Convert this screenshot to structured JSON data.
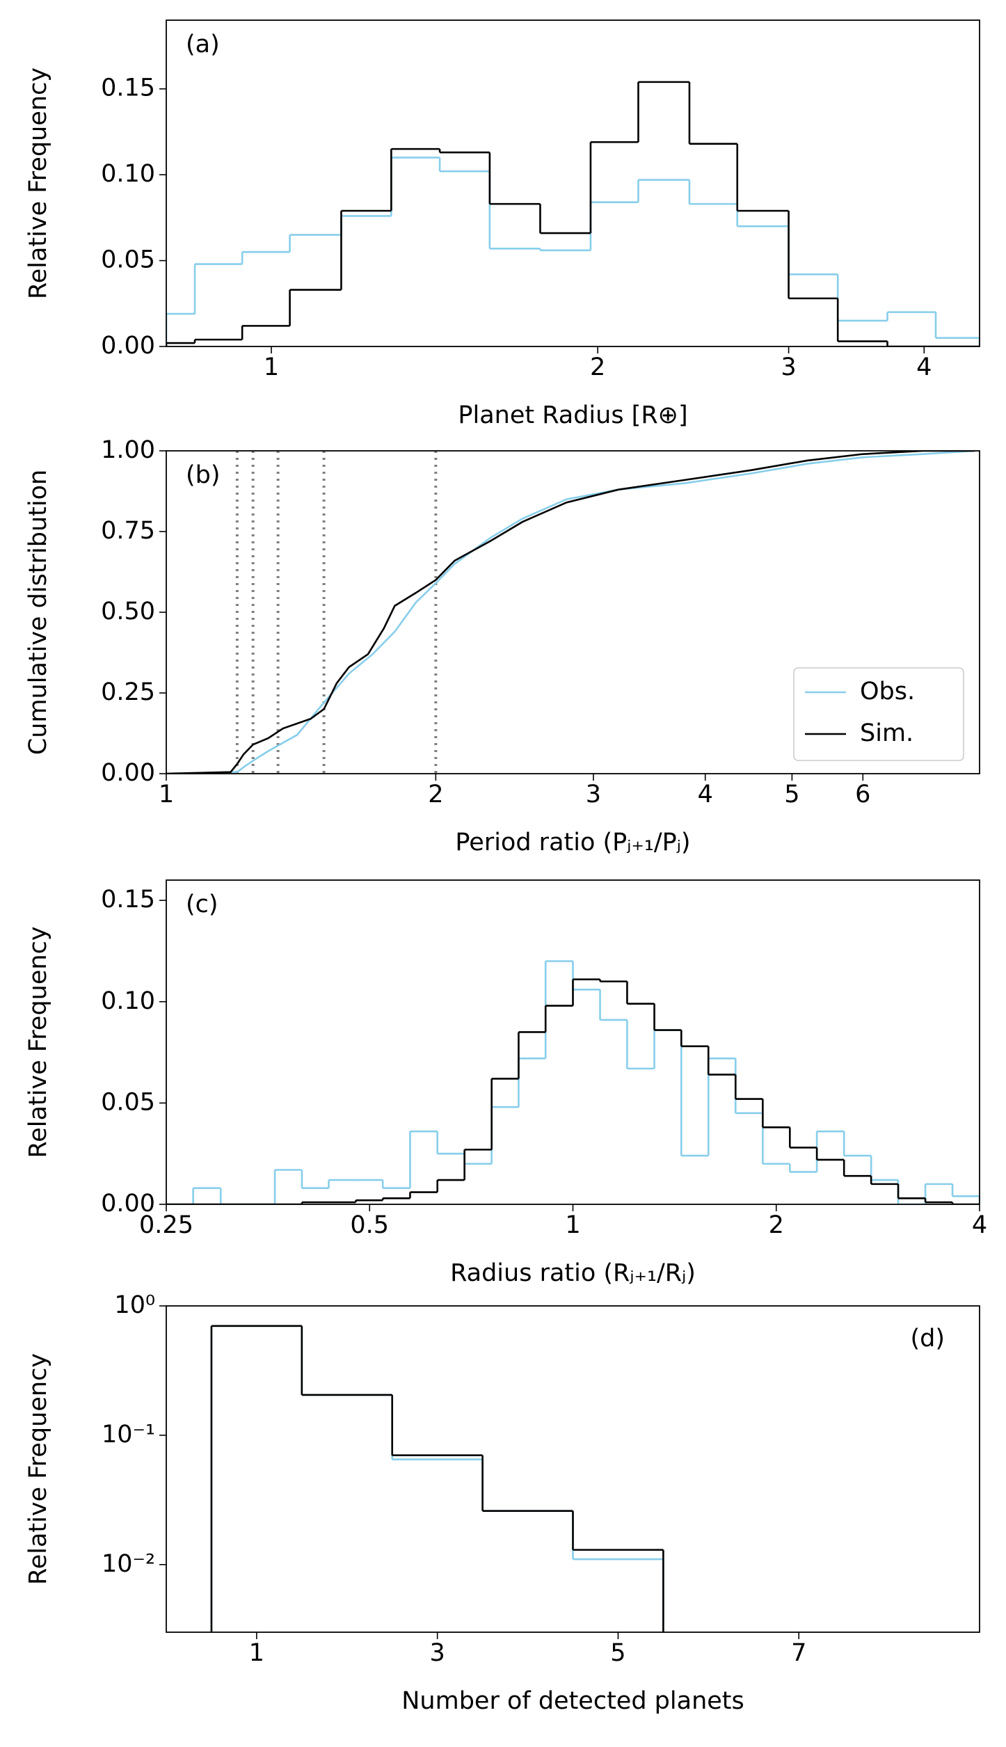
{
  "chart_data": [
    {
      "type": "histogram",
      "annotation": "(a)",
      "annotation_loc": "upper left",
      "xlabel": "Planet Radius [R⊕]",
      "ylabel": "Relative Frequency",
      "xlog": true,
      "xlim": [
        0.8,
        4.5
      ],
      "xticks": [
        1,
        2,
        3,
        4
      ],
      "ylim": [
        0,
        0.19
      ],
      "yticks": [
        {
          "value": 0,
          "label": "0.00"
        },
        {
          "value": 0.05,
          "label": "0.05"
        },
        {
          "value": 0.1,
          "label": "0.10"
        },
        {
          "value": 0.15,
          "label": "0.15"
        }
      ],
      "bins": [
        0.8,
        0.85,
        0.94,
        1.04,
        1.16,
        1.29,
        1.43,
        1.59,
        1.77,
        1.97,
        2.18,
        2.43,
        2.69,
        3.0,
        3.33,
        3.7,
        4.1,
        4.5
      ],
      "series": [
        {
          "color": "#87ceeb",
          "values": [
            0.019,
            0.048,
            0.055,
            0.065,
            0.076,
            0.11,
            0.102,
            0.057,
            0.056,
            0.084,
            0.097,
            0.083,
            0.07,
            0.042,
            0.015,
            0.02,
            0.005
          ]
        },
        {
          "color": "#000000",
          "values": [
            0.002,
            0.004,
            0.012,
            0.033,
            0.079,
            0.115,
            0.113,
            0.083,
            0.066,
            0.119,
            0.154,
            0.118,
            0.079,
            0.028,
            0.003,
            0,
            0
          ]
        }
      ]
    },
    {
      "type": "line",
      "annotation": "(b)",
      "annotation_loc": "upper left",
      "xlabel": "Period ratio (Pⱼ₊₁/Pⱼ)",
      "ylabel": "Cumulative distribution",
      "xlog": true,
      "xlim": [
        1,
        8.1
      ],
      "xticks": [
        1,
        2,
        3,
        4,
        5,
        6
      ],
      "ylim": [
        0,
        1
      ],
      "yticks": [
        {
          "value": 0,
          "label": "0.00"
        },
        {
          "value": 0.25,
          "label": "0.25"
        },
        {
          "value": 0.5,
          "label": "0.50"
        },
        {
          "value": 0.75,
          "label": "0.75"
        },
        {
          "value": 1,
          "label": "1.00"
        }
      ],
      "vlines": [
        1.2,
        1.25,
        1.333,
        1.5,
        2
      ],
      "vline_color": "#808080",
      "legend": "lower right",
      "series": [
        {
          "name": "Obs.",
          "color": "#87ceeb",
          "x": [
            1.0,
            1.2,
            1.22,
            1.25,
            1.3,
            1.4,
            1.5,
            1.6,
            1.7,
            1.8,
            1.9,
            2.0,
            2.1,
            2.3,
            2.5,
            2.8,
            3.2,
            3.8,
            4.5,
            5.2,
            6.0,
            7.0,
            8.0
          ],
          "values": [
            0.0,
            0.005,
            0.02,
            0.04,
            0.07,
            0.12,
            0.22,
            0.31,
            0.37,
            0.44,
            0.53,
            0.59,
            0.65,
            0.73,
            0.79,
            0.85,
            0.88,
            0.9,
            0.93,
            0.96,
            0.98,
            0.99,
            1.0
          ]
        },
        {
          "name": "Sim.",
          "color": "#000000",
          "x": [
            1.0,
            1.18,
            1.2,
            1.22,
            1.25,
            1.3,
            1.35,
            1.45,
            1.5,
            1.55,
            1.6,
            1.68,
            1.75,
            1.8,
            1.9,
            2.0,
            2.1,
            2.3,
            2.5,
            2.8,
            3.2,
            3.8,
            4.5,
            5.2,
            6.0,
            7.0,
            8.0
          ],
          "values": [
            0.0,
            0.005,
            0.03,
            0.06,
            0.09,
            0.11,
            0.14,
            0.17,
            0.2,
            0.28,
            0.33,
            0.37,
            0.45,
            0.52,
            0.56,
            0.6,
            0.66,
            0.72,
            0.78,
            0.84,
            0.88,
            0.91,
            0.94,
            0.97,
            0.99,
            1.0,
            1.0
          ]
        }
      ]
    },
    {
      "type": "histogram",
      "annotation": "(c)",
      "annotation_loc": "upper left",
      "xlabel": "Radius ratio (Rⱼ₊₁/Rⱼ)",
      "ylabel": "Relative Frequency",
      "xlog": true,
      "xlim": [
        0.25,
        4
      ],
      "xticks": [
        0.25,
        0.5,
        1,
        2,
        4
      ],
      "ylim": [
        0,
        0.16
      ],
      "yticks": [
        {
          "value": 0,
          "label": "0.00"
        },
        {
          "value": 0.05,
          "label": "0.05"
        },
        {
          "value": 0.1,
          "label": "0.10"
        },
        {
          "value": 0.15,
          "label": "0.15"
        }
      ],
      "bins": [
        0.25,
        0.274,
        0.301,
        0.33,
        0.362,
        0.397,
        0.435,
        0.477,
        0.523,
        0.574,
        0.63,
        0.691,
        0.758,
        0.831,
        0.911,
        1.0,
        1.097,
        1.203,
        1.32,
        1.447,
        1.587,
        1.741,
        1.91,
        2.095,
        2.297,
        2.52,
        2.764,
        3.031,
        3.325,
        3.647,
        4.0
      ],
      "series": [
        {
          "color": "#87ceeb",
          "values": [
            0,
            0.008,
            0,
            0,
            0.017,
            0.008,
            0.012,
            0.012,
            0.008,
            0.036,
            0.025,
            0.02,
            0.048,
            0.072,
            0.12,
            0.106,
            0.091,
            0.067,
            0.086,
            0.024,
            0.072,
            0.045,
            0.02,
            0.016,
            0.036,
            0.024,
            0.012,
            0,
            0.01,
            0.004
          ]
        },
        {
          "color": "#000000",
          "values": [
            0,
            0,
            0,
            0,
            0,
            0.001,
            0.001,
            0.002,
            0.003,
            0.006,
            0.012,
            0.027,
            0.062,
            0.085,
            0.098,
            0.111,
            0.11,
            0.099,
            0.086,
            0.078,
            0.064,
            0.052,
            0.038,
            0.028,
            0.022,
            0.014,
            0.01,
            0.003,
            0.001,
            0
          ]
        }
      ]
    },
    {
      "type": "histogram",
      "annotation": "(d)",
      "annotation_loc": "upper right",
      "xlabel": "Number of detected planets",
      "ylabel": "Relative Frequency",
      "xlim": [
        0,
        9
      ],
      "xticks": [
        1,
        3,
        5,
        7
      ],
      "ylog": true,
      "ylim": [
        0.003,
        1
      ],
      "yticks": [
        {
          "value": 1,
          "label": "10⁰"
        },
        {
          "value": 0.1,
          "label": "10⁻¹"
        },
        {
          "value": 0.01,
          "label": "10⁻²"
        }
      ],
      "bins": [
        0.5,
        1.5,
        2.5,
        3.5,
        4.5,
        5.5
      ],
      "series": [
        {
          "color": "#87ceeb",
          "values": [
            0.7,
            0.205,
            0.065,
            0.026,
            0.011
          ]
        },
        {
          "color": "#000000",
          "values": [
            0.7,
            0.205,
            0.07,
            0.026,
            0.013
          ]
        }
      ]
    }
  ]
}
